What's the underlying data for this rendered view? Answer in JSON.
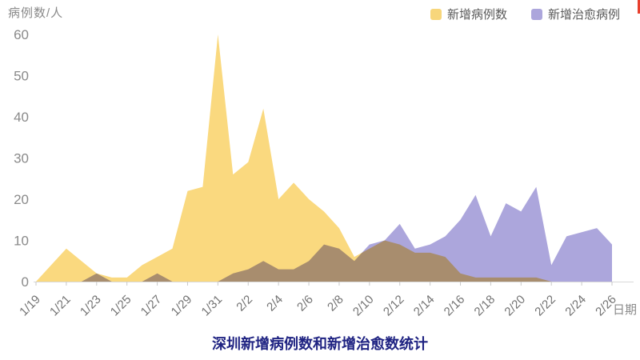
{
  "chart": {
    "y_axis_unit": "病例数/人",
    "x_axis_unit": "日期",
    "title": "深圳新增病例数和新增治愈数统计",
    "legend": [
      {
        "label": "新增病例数",
        "color": "#F7D67B"
      },
      {
        "label": "新增治愈病例",
        "color": "#ACA6DC"
      }
    ]
  },
  "chart_data": {
    "type": "area",
    "title": "深圳新增病例数和新增治愈数统计",
    "xlabel": "日期",
    "ylabel": "病例数/人",
    "ylim": [
      0,
      60
    ],
    "yticks": [
      0,
      10,
      20,
      30,
      40,
      50,
      60
    ],
    "grid": false,
    "legend_position": "top-right",
    "x_label_every": 2,
    "categories": [
      "1/19",
      "1/20",
      "1/21",
      "1/22",
      "1/23",
      "1/24",
      "1/25",
      "1/26",
      "1/27",
      "1/28",
      "1/29",
      "1/30",
      "1/31",
      "2/1",
      "2/2",
      "2/3",
      "2/4",
      "2/5",
      "2/6",
      "2/7",
      "2/8",
      "2/9",
      "2/10",
      "2/11",
      "2/12",
      "2/13",
      "2/14",
      "2/15",
      "2/16",
      "2/17",
      "2/18",
      "2/19",
      "2/20",
      "2/21",
      "2/22",
      "2/23",
      "2/24",
      "2/25",
      "2/26"
    ],
    "series": [
      {
        "name": "新增病例数",
        "color": "#FAD97F",
        "blend": "normal",
        "values": [
          0,
          4,
          8,
          5,
          2,
          1,
          1,
          4,
          6,
          8,
          22,
          23,
          60,
          26,
          29,
          42,
          20,
          24,
          20,
          17,
          13,
          6,
          8,
          10,
          9,
          7,
          7,
          6,
          2,
          1,
          1,
          1,
          1,
          1,
          0,
          0,
          0,
          0,
          0
        ]
      },
      {
        "name": "新增治愈病例",
        "color": "#ACA6DC",
        "blend": "multiply",
        "values": [
          0,
          0,
          0,
          0,
          2,
          0,
          0,
          0,
          2,
          0,
          0,
          0,
          0,
          2,
          3,
          5,
          3,
          3,
          5,
          9,
          8,
          5,
          9,
          10,
          14,
          8,
          9,
          11,
          15,
          21,
          11,
          19,
          17,
          23,
          4,
          11,
          12,
          13,
          9
        ]
      }
    ]
  },
  "style": {
    "axis_color": "#D9D9D9",
    "tick_color": "#C9C9C9",
    "tick_label_color": "#737373",
    "y_label_color": "#8a8a8a"
  },
  "decor": {
    "corner_marker_color": "#E8402E"
  }
}
